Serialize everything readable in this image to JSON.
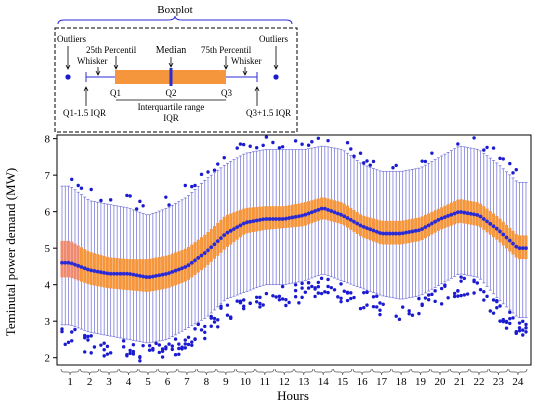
{
  "chart_data": {
    "type": "boxplot",
    "xlabel": "Hours",
    "ylabel": "Teminutal power demand (MW)",
    "ylim": [
      1.8,
      8.1
    ],
    "yticks": [
      2,
      3,
      4,
      5,
      6,
      7,
      8
    ],
    "hour_labels": [
      "1",
      "2",
      "3",
      "4",
      "5",
      "6",
      "7",
      "8",
      "9",
      "10",
      "11",
      "12",
      "13",
      "14",
      "15",
      "16",
      "17",
      "18",
      "19",
      "20",
      "21",
      "22",
      "23",
      "24"
    ],
    "boxes_per_hour": 6,
    "colors": {
      "box": "#f5963c",
      "box_first": "#f08a6e",
      "median": "#2b2bd6",
      "whisker": "#6b6bd8",
      "outlier": "#1a1ad0"
    },
    "anchors": {
      "x": [
        0,
        1,
        2,
        3,
        4,
        5,
        6,
        7,
        8,
        9,
        10,
        11,
        12,
        13,
        14,
        15,
        16,
        17,
        18,
        19,
        20,
        21,
        22,
        23
      ],
      "median": [
        4.6,
        4.4,
        4.3,
        4.3,
        4.2,
        4.3,
        4.5,
        4.9,
        5.4,
        5.7,
        5.8,
        5.8,
        5.9,
        6.1,
        5.9,
        5.6,
        5.4,
        5.4,
        5.5,
        5.8,
        6.0,
        5.9,
        5.5,
        5.0
      ],
      "q1": [
        4.2,
        4.0,
        3.9,
        3.85,
        3.8,
        3.9,
        4.1,
        4.5,
        5.0,
        5.4,
        5.5,
        5.55,
        5.6,
        5.8,
        5.65,
        5.3,
        5.1,
        5.1,
        5.2,
        5.5,
        5.7,
        5.6,
        5.2,
        4.7
      ],
      "q3": [
        5.2,
        4.9,
        4.75,
        4.7,
        4.7,
        4.8,
        5.0,
        5.4,
        5.9,
        6.1,
        6.15,
        6.15,
        6.25,
        6.4,
        6.25,
        5.9,
        5.75,
        5.75,
        5.85,
        6.1,
        6.35,
        6.25,
        5.85,
        5.35
      ],
      "lo": [
        2.9,
        2.7,
        2.6,
        2.5,
        2.4,
        2.5,
        2.8,
        3.1,
        3.6,
        3.8,
        4.0,
        4.0,
        4.1,
        4.3,
        4.1,
        3.9,
        3.7,
        3.6,
        3.7,
        4.0,
        4.3,
        4.2,
        3.6,
        3.1
      ],
      "hi": [
        6.7,
        6.3,
        6.2,
        6.1,
        5.9,
        6.1,
        6.4,
        6.9,
        7.3,
        7.6,
        7.7,
        7.7,
        7.7,
        7.8,
        7.7,
        7.3,
        7.1,
        7.1,
        7.2,
        7.5,
        7.8,
        7.7,
        7.3,
        6.8
      ]
    },
    "legend": {
      "title": "Boxplot",
      "outliers_left": "Outliers",
      "outliers_right": "Outliers",
      "p25": "25th Percentil",
      "median": "Median",
      "p75": "75th Percentil",
      "whisker_left": "Whisker",
      "whisker_right": "Whisker",
      "q1": "Q1",
      "q2": "Q2",
      "q3": "Q3",
      "lower_fence": "Q1-1.5 IQR",
      "upper_fence": "Q3+1.5 IQR",
      "iqr_line1": "Interquartile range",
      "iqr_line2": "IQR"
    }
  }
}
